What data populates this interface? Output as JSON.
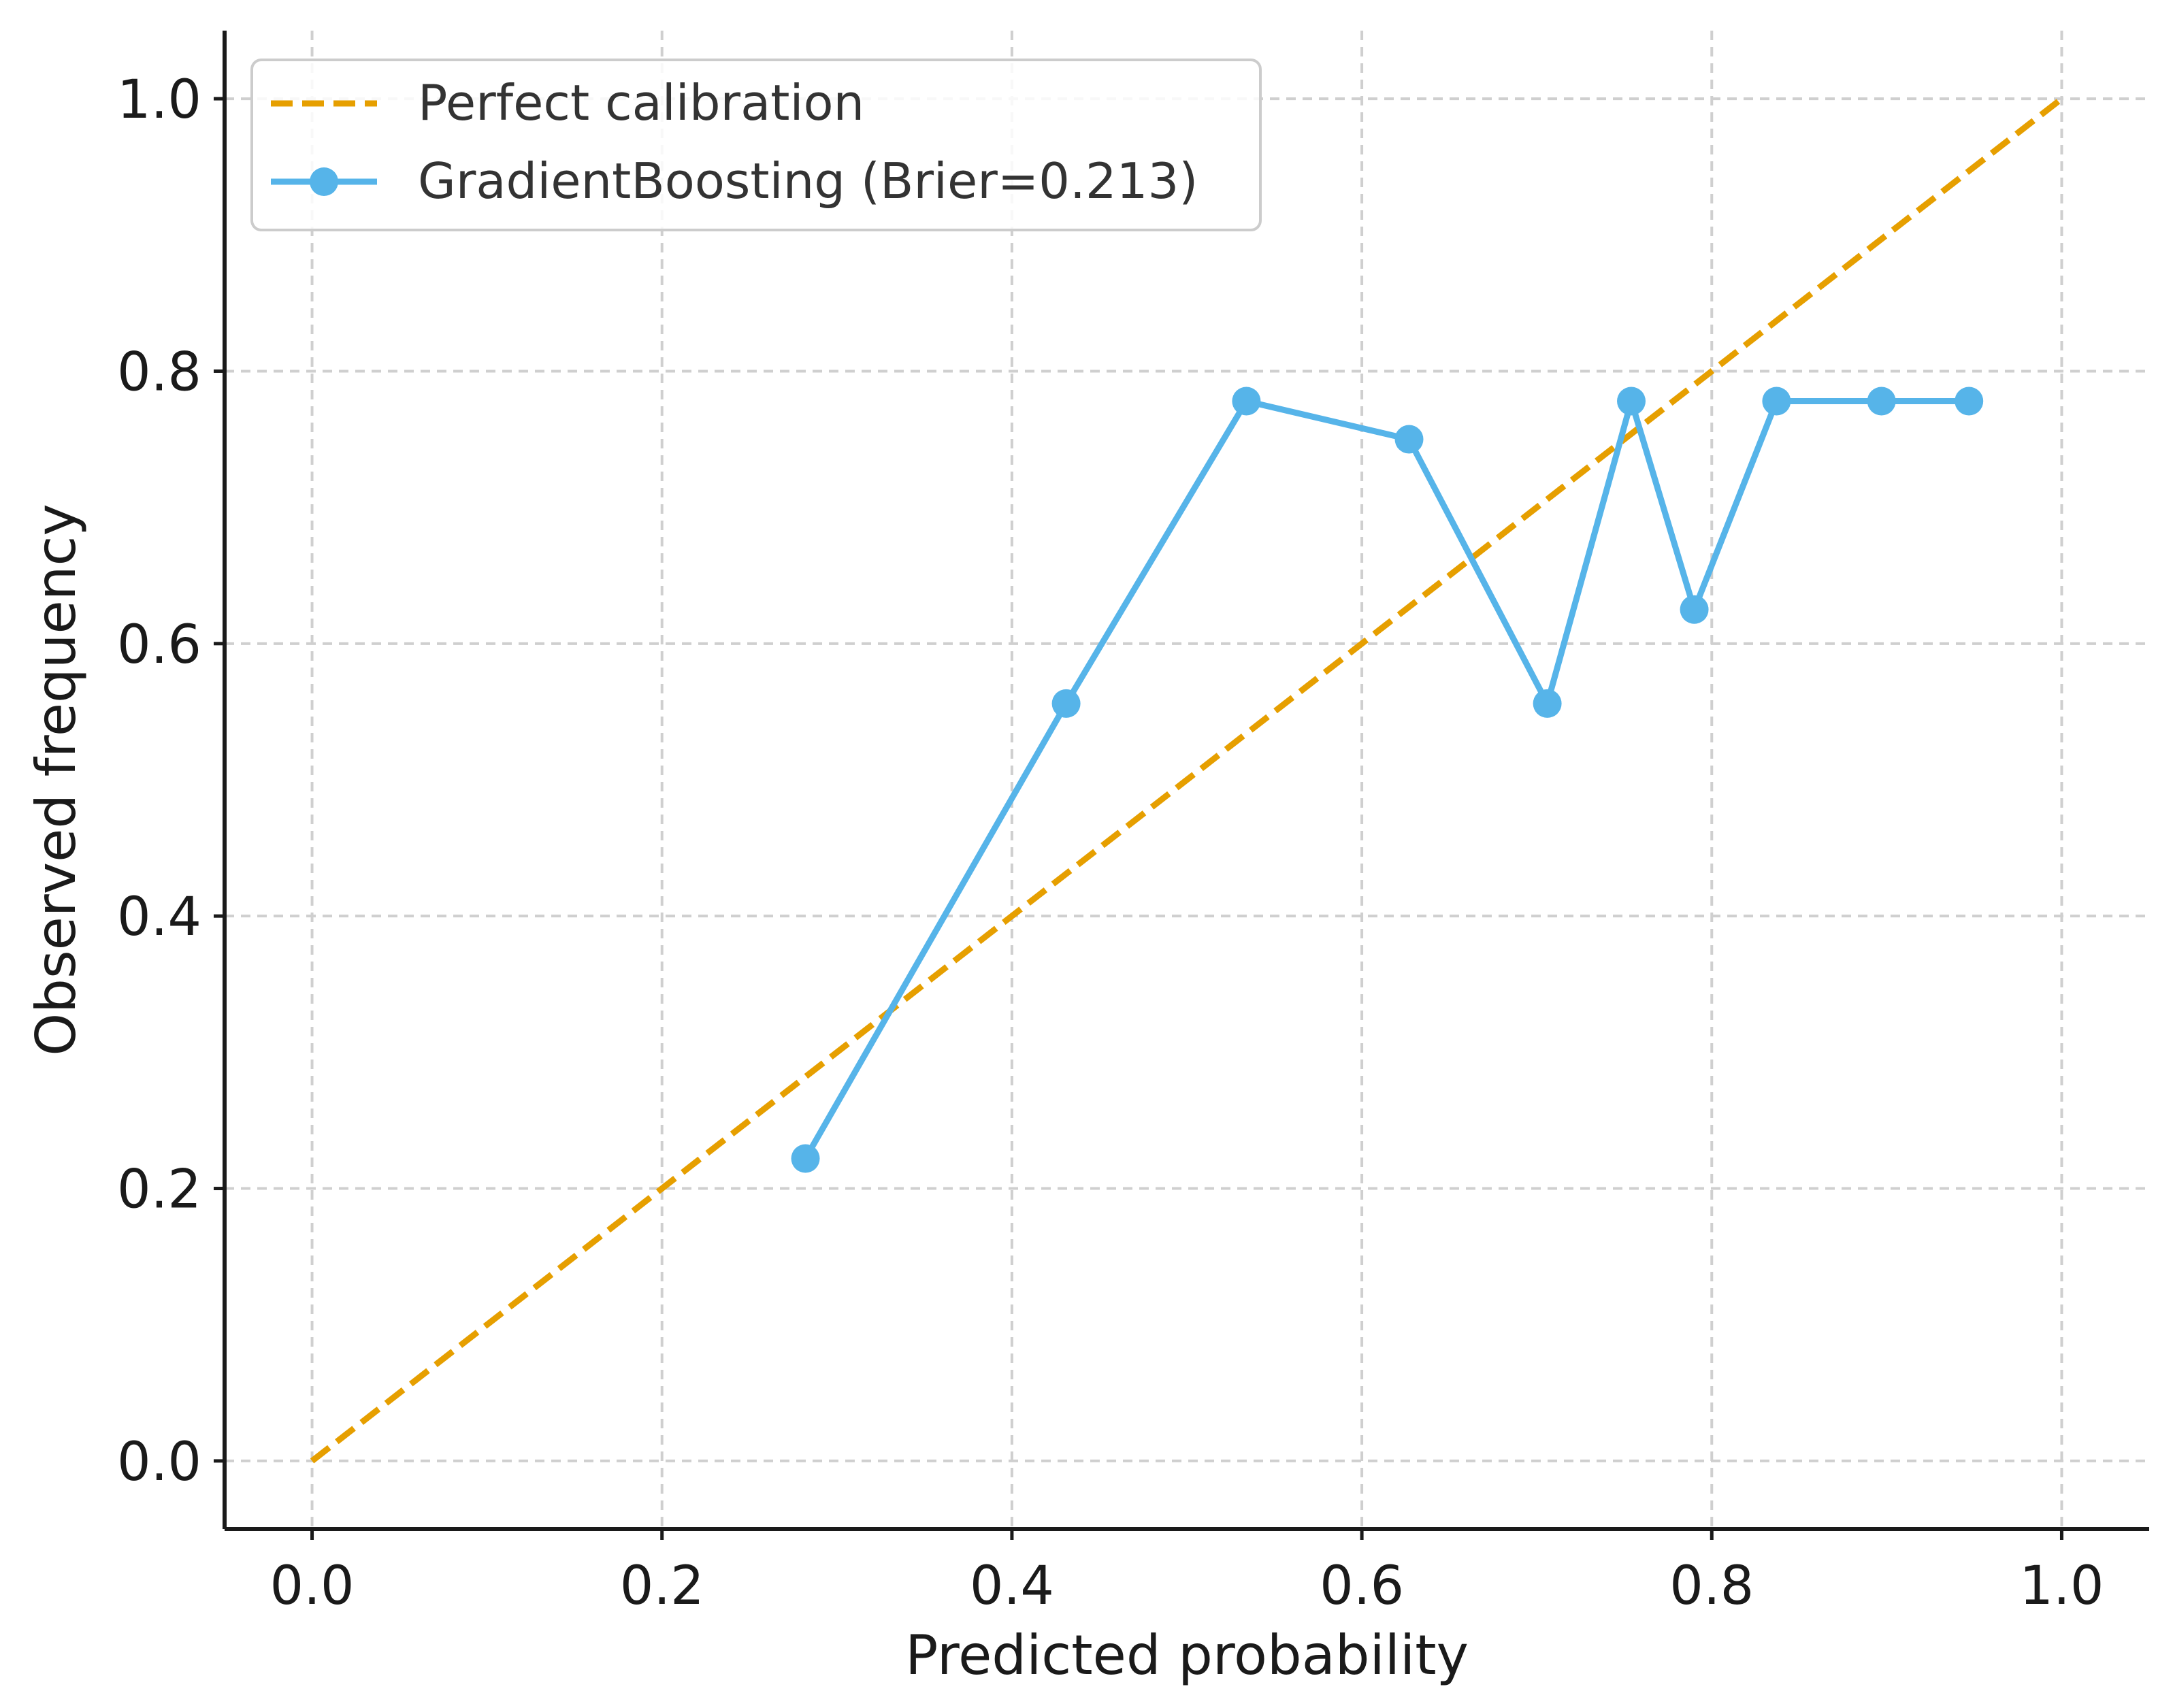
{
  "chart_data": {
    "type": "line",
    "xlabel": "Predicted probability",
    "ylabel": "Observed frequency",
    "xlim": [
      -0.05,
      1.05
    ],
    "ylim": [
      -0.05,
      1.05
    ],
    "xticks": [
      "0.0",
      "0.2",
      "0.4",
      "0.6",
      "0.8",
      "1.0"
    ],
    "yticks": [
      "0.0",
      "0.2",
      "0.4",
      "0.6",
      "0.8",
      "1.0"
    ],
    "grid": true,
    "legend_position": "top-left",
    "series": [
      {
        "name": "Perfect calibration",
        "style": "dashed",
        "color": "#E69F00",
        "x": [
          0.0,
          1.0
        ],
        "y": [
          0.0,
          1.0
        ]
      },
      {
        "name": "GradientBoosting (Brier=0.213)",
        "style": "line-with-markers",
        "color": "#56B4E9",
        "x": [
          0.282,
          0.431,
          0.534,
          0.627,
          0.706,
          0.754,
          0.79,
          0.837,
          0.897,
          0.947
        ],
        "y": [
          0.222,
          0.556,
          0.778,
          0.75,
          0.556,
          0.778,
          0.625,
          0.778,
          0.778,
          0.778
        ]
      }
    ]
  }
}
